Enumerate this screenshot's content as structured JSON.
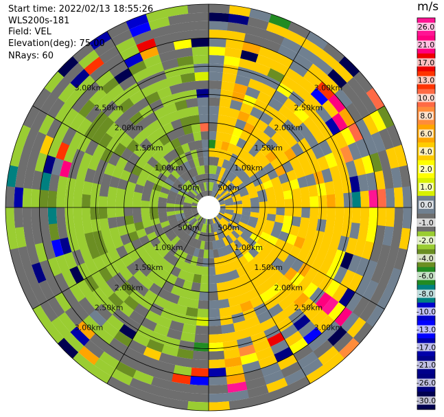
{
  "meta": {
    "start_time": "Start time: 2022/02/13 18:55:26",
    "instrument": "WLS200s-181",
    "field": "Field: VEL",
    "elevation": "Elevation(deg): 75.00",
    "nrays": "NRays: 60"
  },
  "colorbar": {
    "units": "m/s",
    "ticks": [
      "26.0",
      "21.0",
      "17.0",
      "13.0",
      "10.0",
      "8.0",
      "6.0",
      "4.0",
      "2.0",
      "1.0",
      "0.0",
      "-1.0",
      "-2.0",
      "-4.0",
      "-6.0",
      "-8.0",
      "-10.0",
      "-13.0",
      "-17.0",
      "-21.0",
      "-26.0",
      "-30.0"
    ],
    "colors": [
      "#ff1493",
      "#ff007f",
      "#ee0000",
      "#ff3300",
      "#ff6a45",
      "#ff8c3a",
      "#ffa500",
      "#ffcc00",
      "#ffff00",
      "#d8f000",
      "#708090",
      "#6e6e6e",
      "#9acd32",
      "#6b8e23",
      "#228b22",
      "#008080",
      "#0000cd",
      "#0000ff",
      "#0000aa",
      "#00008b",
      "#000080",
      "#000050"
    ]
  },
  "chart_data": {
    "type": "heatmap",
    "projection": "polar (PPI scan)",
    "field": "VEL",
    "units": "m/s",
    "range_rings_km": [
      0.5,
      1.0,
      1.5,
      2.0,
      2.5,
      3.0
    ],
    "ring_labels": [
      "500m",
      "1.00km",
      "1.50km",
      "2.00km",
      "2.50km",
      "3.00km"
    ],
    "max_range_km": 3.6,
    "num_gates": 24,
    "nrays": 60,
    "azimuth_step_deg": 6,
    "spoke_angles_deg": [
      0,
      30,
      60,
      90,
      120,
      150,
      180,
      210,
      240,
      270,
      300,
      330
    ],
    "velocity_pattern": {
      "receding_side": "east (positive ~2 to 4 m/s, yellow)",
      "approaching_side": "west (negative ~-1 to -2 m/s, green/grey)",
      "far_range_noise": "mixed colors at ranges beyond ~2.5 km"
    }
  }
}
